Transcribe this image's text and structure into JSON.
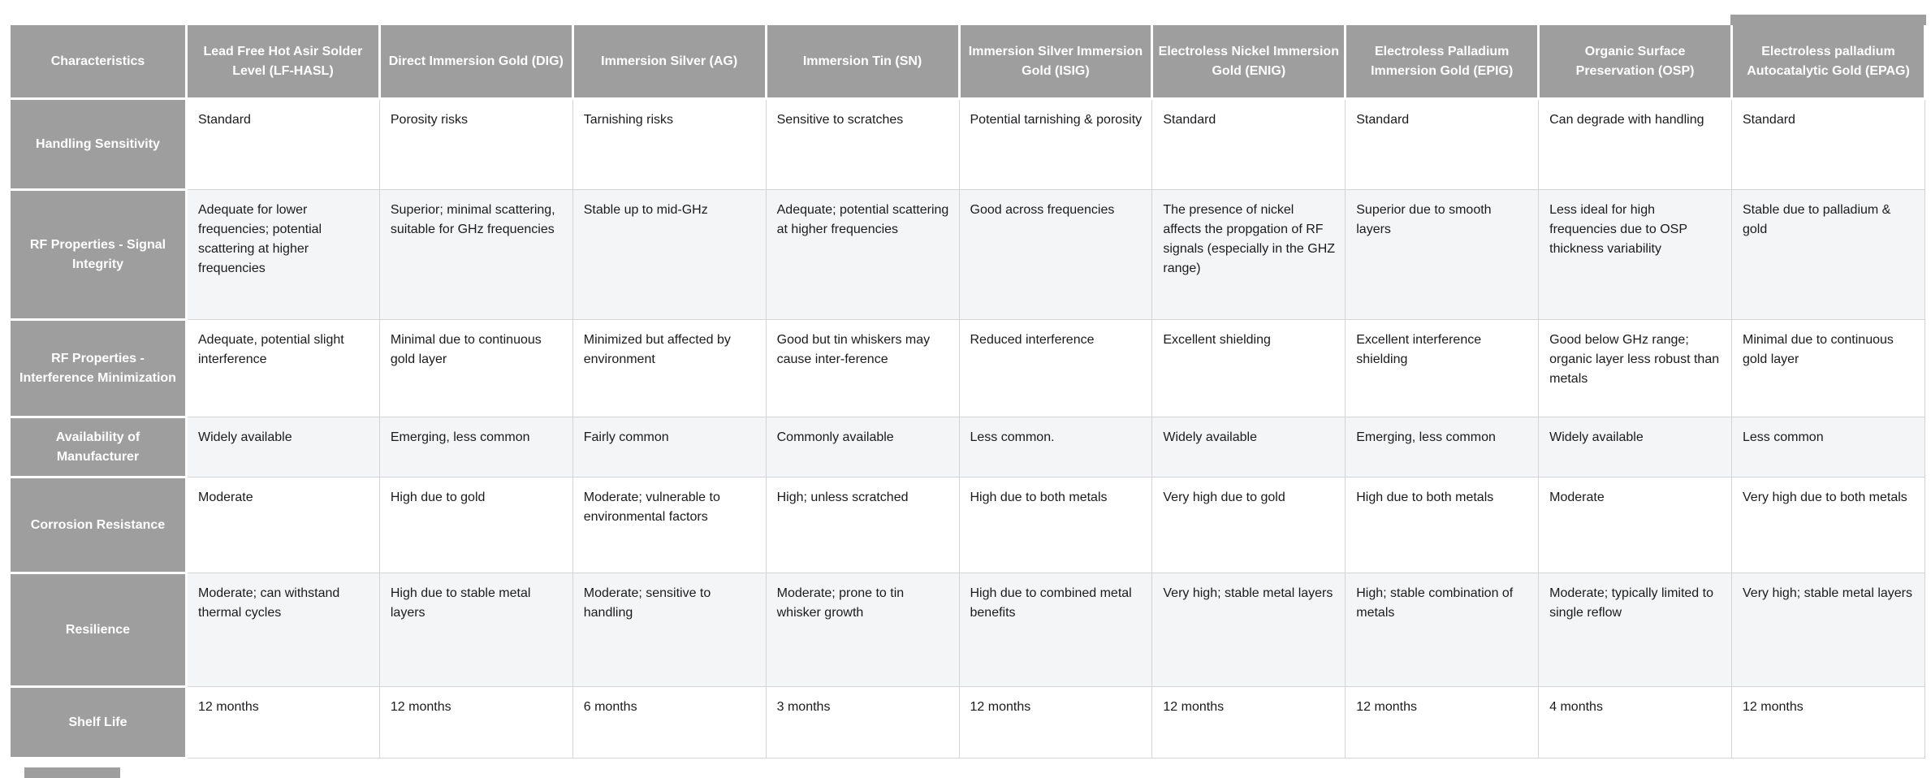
{
  "colors": {
    "header_bg": "#9e9e9e",
    "header_text": "#ffffff",
    "row_alt_bg": "#f4f5f7",
    "cell_border": "#d4d4d6",
    "body_text": "#1b1b1d"
  },
  "table": {
    "header": [
      "Characteristics",
      "Lead Free Hot Asir Solder Level (LF-HASL)",
      "Direct Immersion Gold (DIG)",
      "Immersion Silver (AG)",
      "Immersion Tin (SN)",
      "Immersion Silver Immersion Gold (ISIG)",
      "Electroless Nickel Immersion Gold (ENIG)",
      "Electroless Palladium Immersion Gold (EPIG)",
      "Organic Surface Preservation (OSP)",
      "Electroless palladium Autocatalytic Gold (EPAG)"
    ],
    "rows": [
      {
        "label": "Handling Sensitivity",
        "cells": [
          "Standard",
          "Porosity risks",
          "Tarnishing risks",
          "Sensitive to scratches",
          "Potential tarnishing & porosity",
          "Standard",
          "Standard",
          "Can degrade with handling",
          "Standard"
        ]
      },
      {
        "label": "RF Properties - Signal Integrity",
        "cells": [
          "Adequate for lower frequencies; potential scattering at higher frequencies",
          "Superior; minimal scattering, suitable for GHz frequencies",
          "Stable up to mid-GHz",
          "Adequate; potential scattering at higher frequencies",
          "Good across frequencies",
          "The presence of nickel affects the propgation of RF signals (especially in the GHZ range)",
          "Superior due to smooth layers",
          "Less ideal for high frequencies due to OSP thickness variability",
          "Stable due to palladium & gold"
        ]
      },
      {
        "label": "RF Properties - Interference Minimization",
        "cells": [
          "Adequate, potential slight interference",
          "Minimal due to continuous gold layer",
          "Minimized but affected by environment",
          "Good but tin whiskers may cause inter-ference",
          "Reduced interference",
          "Excellent shielding",
          "Excellent interference shielding",
          "Good below GHz range; organic layer less robust than metals",
          "Minimal due to continuous gold layer"
        ]
      },
      {
        "label": "Availability of Manufacturer",
        "cells": [
          "Widely available",
          "Emerging, less common",
          "Fairly common",
          "Commonly available",
          "Less common.",
          "Widely available",
          "Emerging, less common",
          "Widely available",
          "Less common"
        ]
      },
      {
        "label": "Corrosion Resistance",
        "cells": [
          "Moderate",
          "High due to gold",
          "Moderate; vulnerable to environmental factors",
          "High; unless scratched",
          "High due to both metals",
          "Very high due to gold",
          "High due to both metals",
          "Moderate",
          "Very high due to both metals"
        ]
      },
      {
        "label": "Resilience",
        "cells": [
          "Moderate; can withstand thermal cycles",
          "High due to stable metal layers",
          "Moderate; sensitive to handling",
          "Moderate; prone to tin whisker growth",
          "High due to combined metal benefits",
          "Very high; stable metal layers",
          "High; stable combination of metals",
          "Moderate; typically limited to single reflow",
          "Very high; stable metal layers"
        ]
      },
      {
        "label": "Shelf Life",
        "cells": [
          "12 months",
          "12 months",
          "6 months",
          "3 months",
          "12 months",
          "12 months",
          "12 months",
          "4 months",
          "12 months"
        ]
      }
    ]
  }
}
